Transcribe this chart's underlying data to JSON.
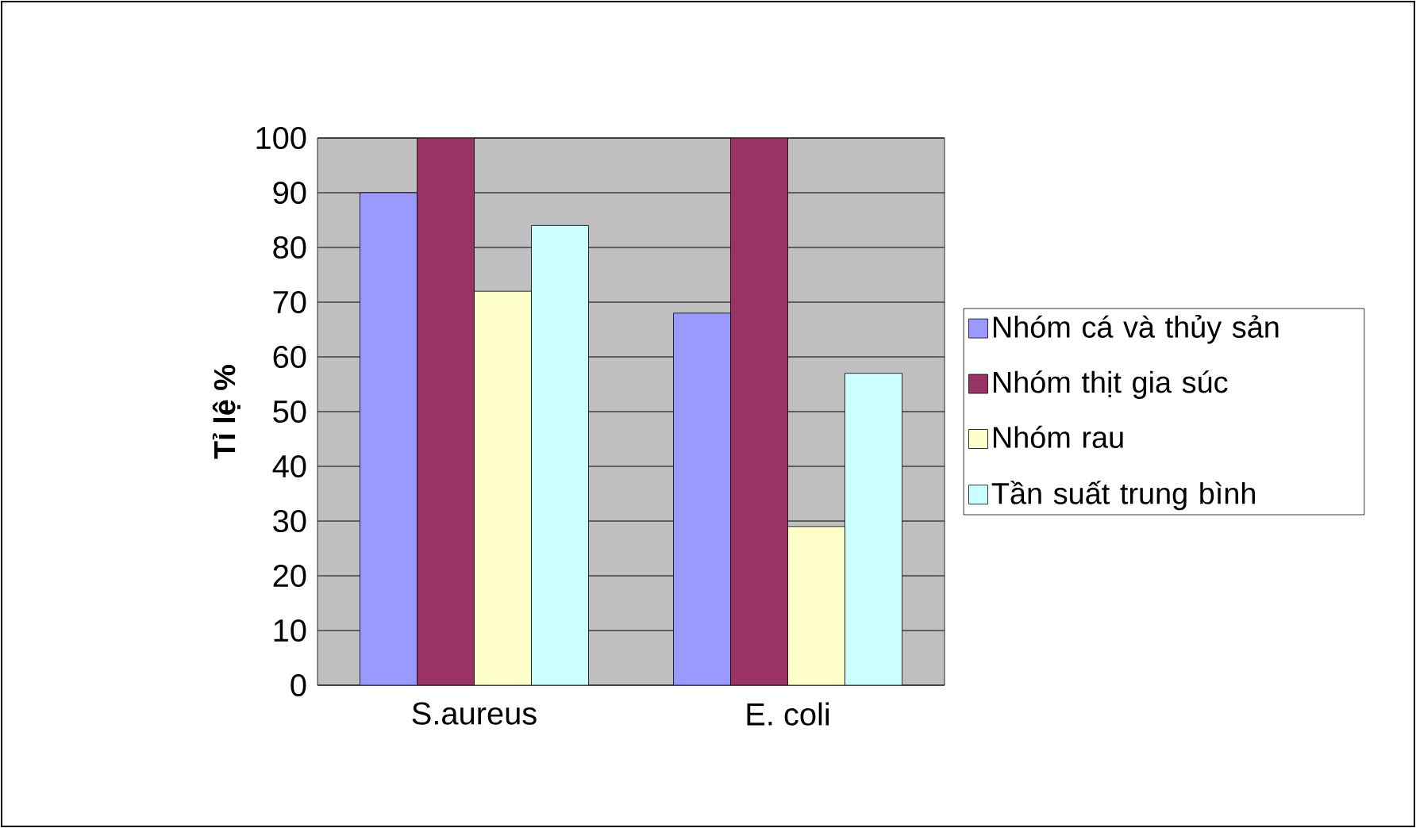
{
  "chart_data": {
    "type": "bar",
    "ylabel": "Tỉ lệ %",
    "categories": [
      "S.aureus",
      "E. coli"
    ],
    "series": [
      {
        "name": "Nhóm cá và thủy sản",
        "color": "#9999ff",
        "values": [
          90,
          68
        ]
      },
      {
        "name": "Nhóm thịt gia súc",
        "color": "#993366",
        "values": [
          100,
          100
        ]
      },
      {
        "name": "Nhóm rau",
        "color": "#ffffcc",
        "values": [
          72,
          29
        ]
      },
      {
        "name": "Tần suất trung bình",
        "color": "#ccffff",
        "values": [
          84,
          57
        ]
      }
    ],
    "ylim": [
      0,
      100
    ],
    "yticks": [
      0,
      10,
      20,
      30,
      40,
      50,
      60,
      70,
      80,
      90,
      100
    ],
    "grid": "y",
    "legend": "right"
  }
}
